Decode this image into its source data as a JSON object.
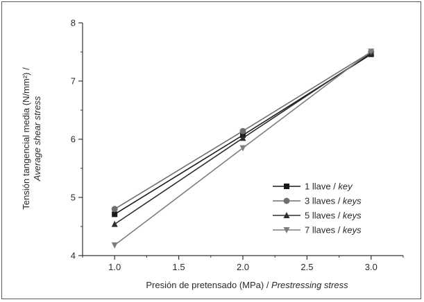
{
  "chart_data": {
    "type": "line",
    "title": "",
    "xlabel": "Presión de pretensado (MPa) / ",
    "xlabel_italic": "Prestressing stress",
    "ylabel": "Tensión tangencial media (N/mm²) /",
    "ylabel_italic": "Average shear stress",
    "xlim": [
      0.75,
      3.25
    ],
    "ylim": [
      4,
      8
    ],
    "xticks": [
      1.0,
      1.5,
      2.0,
      2.5,
      3.0
    ],
    "xtick_labels": [
      "1.0",
      "1.5",
      "2.0",
      "2.5",
      "3.0"
    ],
    "yticks": [
      4,
      5,
      6,
      7,
      8
    ],
    "ytick_labels": [
      "4",
      "5",
      "6",
      "7",
      "8"
    ],
    "grid": false,
    "legend_position": "bottom-right",
    "x": [
      1.0,
      2.0,
      3.0
    ],
    "series": [
      {
        "name": "1 llave / ",
        "name_italic": "key",
        "marker": "square",
        "color": "#1a1a1a",
        "values": [
          4.71,
          6.07,
          7.46
        ]
      },
      {
        "name": "3 llaves / ",
        "name_italic": "keys",
        "marker": "circle",
        "color": "#6e6e6e",
        "values": [
          4.8,
          6.14,
          7.5
        ]
      },
      {
        "name": "5 llaves / ",
        "name_italic": "keys",
        "marker": "triangle-up",
        "color": "#2e2e2e",
        "values": [
          4.54,
          6.02,
          7.48
        ]
      },
      {
        "name": "7 llaves / ",
        "name_italic": "keys",
        "marker": "triangle-down",
        "color": "#7d7d7d",
        "values": [
          4.18,
          5.85,
          7.51
        ]
      }
    ]
  }
}
